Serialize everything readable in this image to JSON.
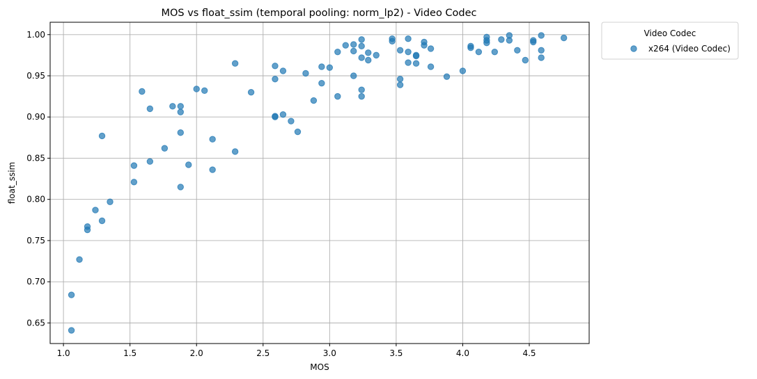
{
  "chart_data": {
    "type": "scatter",
    "title": "MOS vs float_ssim (temporal pooling: norm_lp2) - Video Codec",
    "xlabel": "MOS",
    "ylabel": "float_ssim",
    "xlim": [
      0.9,
      4.95
    ],
    "ylim": [
      0.625,
      1.015
    ],
    "xticks": [
      "1.0",
      "1.5",
      "2.0",
      "2.5",
      "3.0",
      "3.5",
      "4.0",
      "4.5"
    ],
    "xtick_values": [
      1.0,
      1.5,
      2.0,
      2.5,
      3.0,
      3.5,
      4.0,
      4.5
    ],
    "yticks": [
      "0.65",
      "0.70",
      "0.75",
      "0.80",
      "0.85",
      "0.90",
      "0.95",
      "1.00"
    ],
    "ytick_values": [
      0.65,
      0.7,
      0.75,
      0.8,
      0.85,
      0.9,
      0.95,
      1.0
    ],
    "grid": true,
    "legend": {
      "title": "Video Codec",
      "placement": "outside-top-right",
      "entries": [
        "x264 (Video Codec)"
      ]
    },
    "series": [
      {
        "name": "x264 (Video Codec)",
        "color": "#1f77b4",
        "points": [
          [
            1.06,
            0.684
          ],
          [
            1.06,
            0.641
          ],
          [
            1.12,
            0.727
          ],
          [
            1.18,
            0.767
          ],
          [
            1.18,
            0.763
          ],
          [
            1.24,
            0.787
          ],
          [
            1.29,
            0.877
          ],
          [
            1.29,
            0.774
          ],
          [
            1.35,
            0.797
          ],
          [
            1.53,
            0.841
          ],
          [
            1.53,
            0.821
          ],
          [
            1.59,
            0.931
          ],
          [
            1.65,
            0.91
          ],
          [
            1.65,
            0.846
          ],
          [
            1.76,
            0.862
          ],
          [
            1.82,
            0.913
          ],
          [
            1.88,
            0.913
          ],
          [
            1.88,
            0.906
          ],
          [
            1.88,
            0.881
          ],
          [
            1.88,
            0.815
          ],
          [
            1.94,
            0.842
          ],
          [
            2.0,
            0.934
          ],
          [
            2.06,
            0.932
          ],
          [
            2.12,
            0.873
          ],
          [
            2.12,
            0.836
          ],
          [
            2.29,
            0.965
          ],
          [
            2.29,
            0.858
          ],
          [
            2.41,
            0.93
          ],
          [
            2.59,
            0.962
          ],
          [
            2.59,
            0.946
          ],
          [
            2.59,
            0.901
          ],
          [
            2.59,
            0.9
          ],
          [
            2.65,
            0.956
          ],
          [
            2.65,
            0.903
          ],
          [
            2.71,
            0.895
          ],
          [
            2.76,
            0.882
          ],
          [
            2.82,
            0.953
          ],
          [
            2.88,
            0.92
          ],
          [
            2.94,
            0.961
          ],
          [
            2.94,
            0.941
          ],
          [
            3.0,
            0.96
          ],
          [
            3.06,
            0.979
          ],
          [
            3.06,
            0.925
          ],
          [
            3.12,
            0.987
          ],
          [
            3.18,
            0.988
          ],
          [
            3.18,
            0.98
          ],
          [
            3.18,
            0.95
          ],
          [
            3.24,
            0.994
          ],
          [
            3.24,
            0.986
          ],
          [
            3.24,
            0.972
          ],
          [
            3.24,
            0.933
          ],
          [
            3.24,
            0.925
          ],
          [
            3.29,
            0.978
          ],
          [
            3.29,
            0.969
          ],
          [
            3.35,
            0.975
          ],
          [
            3.47,
            0.995
          ],
          [
            3.47,
            0.992
          ],
          [
            3.53,
            0.981
          ],
          [
            3.53,
            0.946
          ],
          [
            3.53,
            0.939
          ],
          [
            3.59,
            0.995
          ],
          [
            3.59,
            0.979
          ],
          [
            3.59,
            0.966
          ],
          [
            3.65,
            0.975
          ],
          [
            3.65,
            0.974
          ],
          [
            3.65,
            0.965
          ],
          [
            3.71,
            0.991
          ],
          [
            3.71,
            0.987
          ],
          [
            3.76,
            0.983
          ],
          [
            3.76,
            0.961
          ],
          [
            3.88,
            0.949
          ],
          [
            4.0,
            0.956
          ],
          [
            4.06,
            0.986
          ],
          [
            4.06,
            0.984
          ],
          [
            4.12,
            0.979
          ],
          [
            4.18,
            0.997
          ],
          [
            4.18,
            0.993
          ],
          [
            4.18,
            0.99
          ],
          [
            4.24,
            0.979
          ],
          [
            4.29,
            0.994
          ],
          [
            4.35,
            0.999
          ],
          [
            4.35,
            0.993
          ],
          [
            4.41,
            0.981
          ],
          [
            4.47,
            0.969
          ],
          [
            4.53,
            0.993
          ],
          [
            4.53,
            0.991
          ],
          [
            4.59,
            0.999
          ],
          [
            4.59,
            0.981
          ],
          [
            4.59,
            0.972
          ],
          [
            4.76,
            0.996
          ]
        ]
      }
    ]
  }
}
